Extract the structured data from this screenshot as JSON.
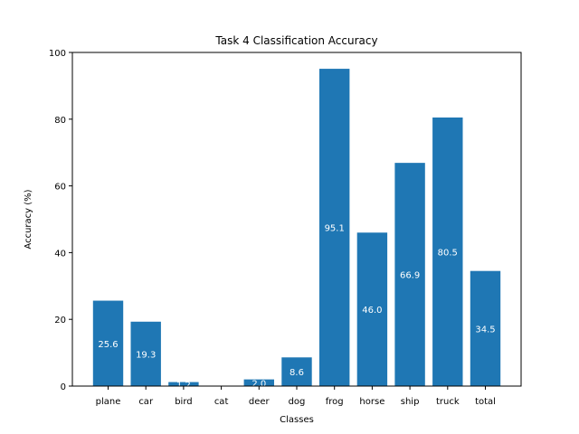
{
  "chart_data": {
    "type": "bar",
    "title": "Task 4 Classification Accuracy",
    "xlabel": "Classes",
    "ylabel": "Accuracy (%)",
    "categories": [
      "plane",
      "car",
      "bird",
      "cat",
      "deer",
      "dog",
      "frog",
      "horse",
      "ship",
      "truck",
      "total"
    ],
    "values": [
      25.6,
      19.3,
      1.2,
      0.0,
      2.0,
      8.6,
      95.1,
      46.0,
      66.9,
      80.5,
      34.5
    ],
    "ylim": [
      0,
      100
    ],
    "yticks": [
      0,
      20,
      40,
      60,
      80,
      100
    ],
    "bar_color": "#1f77b4",
    "label_color": "#ffffff",
    "grid": false,
    "legend": false
  }
}
